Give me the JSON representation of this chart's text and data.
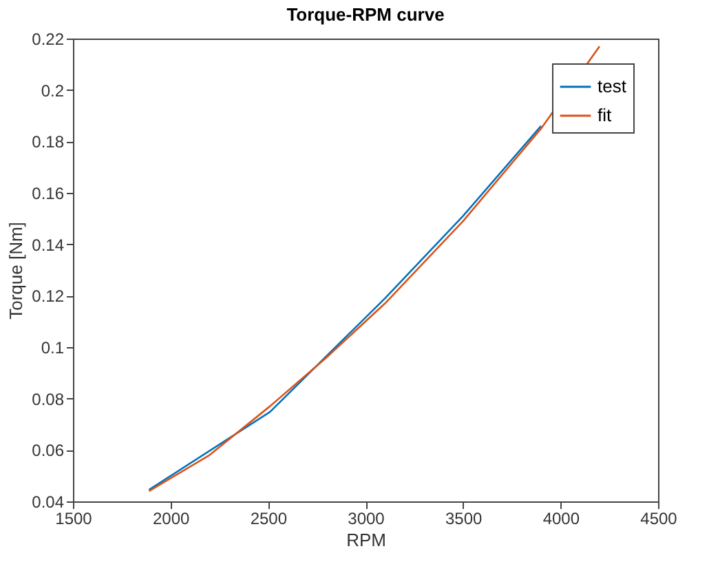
{
  "chart_data": {
    "type": "line",
    "title": "Torque-RPM curve",
    "xlabel": "RPM",
    "ylabel": "Torque [Nm]",
    "xlim": [
      1500,
      4500
    ],
    "xticks": [
      1500,
      2000,
      2500,
      3000,
      3500,
      4000,
      4500
    ],
    "ylim": [
      0.04,
      0.22
    ],
    "yticks": [
      0.04,
      0.06,
      0.08,
      0.1,
      0.12,
      0.14,
      0.16,
      0.18,
      0.2,
      0.22
    ],
    "grid": false,
    "legend": "top right",
    "series": [
      {
        "name": "test",
        "color": "#0072bd",
        "x": [
          1890,
          2510,
          3100,
          3500,
          3900
        ],
        "values": [
          0.0445,
          0.0748,
          0.119,
          0.151,
          0.186
        ]
      },
      {
        "name": "fit",
        "color": "#d95319",
        "x": [
          1890,
          2200,
          2510,
          2800,
          3100,
          3500,
          3900,
          4200
        ],
        "values": [
          0.044,
          0.058,
          0.077,
          0.096,
          0.117,
          0.149,
          0.185,
          0.217
        ]
      }
    ]
  }
}
